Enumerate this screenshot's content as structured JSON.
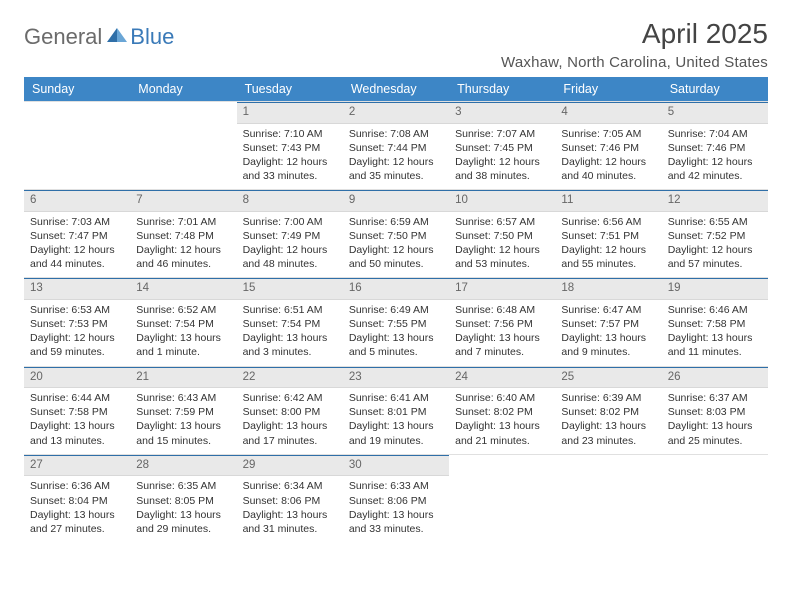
{
  "logo": {
    "text1": "General",
    "text2": "Blue"
  },
  "title": "April 2025",
  "location": "Waxhaw, North Carolina, United States",
  "colors": {
    "header_bg": "#3d86c6",
    "daynum_bg": "#e9e9e9",
    "separator": "#2f6fa8",
    "logo_gray": "#6b6b6b",
    "logo_blue": "#3a7ab8"
  },
  "daysOfWeek": [
    "Sunday",
    "Monday",
    "Tuesday",
    "Wednesday",
    "Thursday",
    "Friday",
    "Saturday"
  ],
  "weeks": [
    [
      null,
      null,
      {
        "n": "1",
        "sunrise": "Sunrise: 7:10 AM",
        "sunset": "Sunset: 7:43 PM",
        "daylight": "Daylight: 12 hours and 33 minutes."
      },
      {
        "n": "2",
        "sunrise": "Sunrise: 7:08 AM",
        "sunset": "Sunset: 7:44 PM",
        "daylight": "Daylight: 12 hours and 35 minutes."
      },
      {
        "n": "3",
        "sunrise": "Sunrise: 7:07 AM",
        "sunset": "Sunset: 7:45 PM",
        "daylight": "Daylight: 12 hours and 38 minutes."
      },
      {
        "n": "4",
        "sunrise": "Sunrise: 7:05 AM",
        "sunset": "Sunset: 7:46 PM",
        "daylight": "Daylight: 12 hours and 40 minutes."
      },
      {
        "n": "5",
        "sunrise": "Sunrise: 7:04 AM",
        "sunset": "Sunset: 7:46 PM",
        "daylight": "Daylight: 12 hours and 42 minutes."
      }
    ],
    [
      {
        "n": "6",
        "sunrise": "Sunrise: 7:03 AM",
        "sunset": "Sunset: 7:47 PM",
        "daylight": "Daylight: 12 hours and 44 minutes."
      },
      {
        "n": "7",
        "sunrise": "Sunrise: 7:01 AM",
        "sunset": "Sunset: 7:48 PM",
        "daylight": "Daylight: 12 hours and 46 minutes."
      },
      {
        "n": "8",
        "sunrise": "Sunrise: 7:00 AM",
        "sunset": "Sunset: 7:49 PM",
        "daylight": "Daylight: 12 hours and 48 minutes."
      },
      {
        "n": "9",
        "sunrise": "Sunrise: 6:59 AM",
        "sunset": "Sunset: 7:50 PM",
        "daylight": "Daylight: 12 hours and 50 minutes."
      },
      {
        "n": "10",
        "sunrise": "Sunrise: 6:57 AM",
        "sunset": "Sunset: 7:50 PM",
        "daylight": "Daylight: 12 hours and 53 minutes."
      },
      {
        "n": "11",
        "sunrise": "Sunrise: 6:56 AM",
        "sunset": "Sunset: 7:51 PM",
        "daylight": "Daylight: 12 hours and 55 minutes."
      },
      {
        "n": "12",
        "sunrise": "Sunrise: 6:55 AM",
        "sunset": "Sunset: 7:52 PM",
        "daylight": "Daylight: 12 hours and 57 minutes."
      }
    ],
    [
      {
        "n": "13",
        "sunrise": "Sunrise: 6:53 AM",
        "sunset": "Sunset: 7:53 PM",
        "daylight": "Daylight: 12 hours and 59 minutes."
      },
      {
        "n": "14",
        "sunrise": "Sunrise: 6:52 AM",
        "sunset": "Sunset: 7:54 PM",
        "daylight": "Daylight: 13 hours and 1 minute."
      },
      {
        "n": "15",
        "sunrise": "Sunrise: 6:51 AM",
        "sunset": "Sunset: 7:54 PM",
        "daylight": "Daylight: 13 hours and 3 minutes."
      },
      {
        "n": "16",
        "sunrise": "Sunrise: 6:49 AM",
        "sunset": "Sunset: 7:55 PM",
        "daylight": "Daylight: 13 hours and 5 minutes."
      },
      {
        "n": "17",
        "sunrise": "Sunrise: 6:48 AM",
        "sunset": "Sunset: 7:56 PM",
        "daylight": "Daylight: 13 hours and 7 minutes."
      },
      {
        "n": "18",
        "sunrise": "Sunrise: 6:47 AM",
        "sunset": "Sunset: 7:57 PM",
        "daylight": "Daylight: 13 hours and 9 minutes."
      },
      {
        "n": "19",
        "sunrise": "Sunrise: 6:46 AM",
        "sunset": "Sunset: 7:58 PM",
        "daylight": "Daylight: 13 hours and 11 minutes."
      }
    ],
    [
      {
        "n": "20",
        "sunrise": "Sunrise: 6:44 AM",
        "sunset": "Sunset: 7:58 PM",
        "daylight": "Daylight: 13 hours and 13 minutes."
      },
      {
        "n": "21",
        "sunrise": "Sunrise: 6:43 AM",
        "sunset": "Sunset: 7:59 PM",
        "daylight": "Daylight: 13 hours and 15 minutes."
      },
      {
        "n": "22",
        "sunrise": "Sunrise: 6:42 AM",
        "sunset": "Sunset: 8:00 PM",
        "daylight": "Daylight: 13 hours and 17 minutes."
      },
      {
        "n": "23",
        "sunrise": "Sunrise: 6:41 AM",
        "sunset": "Sunset: 8:01 PM",
        "daylight": "Daylight: 13 hours and 19 minutes."
      },
      {
        "n": "24",
        "sunrise": "Sunrise: 6:40 AM",
        "sunset": "Sunset: 8:02 PM",
        "daylight": "Daylight: 13 hours and 21 minutes."
      },
      {
        "n": "25",
        "sunrise": "Sunrise: 6:39 AM",
        "sunset": "Sunset: 8:02 PM",
        "daylight": "Daylight: 13 hours and 23 minutes."
      },
      {
        "n": "26",
        "sunrise": "Sunrise: 6:37 AM",
        "sunset": "Sunset: 8:03 PM",
        "daylight": "Daylight: 13 hours and 25 minutes."
      }
    ],
    [
      {
        "n": "27",
        "sunrise": "Sunrise: 6:36 AM",
        "sunset": "Sunset: 8:04 PM",
        "daylight": "Daylight: 13 hours and 27 minutes."
      },
      {
        "n": "28",
        "sunrise": "Sunrise: 6:35 AM",
        "sunset": "Sunset: 8:05 PM",
        "daylight": "Daylight: 13 hours and 29 minutes."
      },
      {
        "n": "29",
        "sunrise": "Sunrise: 6:34 AM",
        "sunset": "Sunset: 8:06 PM",
        "daylight": "Daylight: 13 hours and 31 minutes."
      },
      {
        "n": "30",
        "sunrise": "Sunrise: 6:33 AM",
        "sunset": "Sunset: 8:06 PM",
        "daylight": "Daylight: 13 hours and 33 minutes."
      },
      null,
      null,
      null
    ]
  ]
}
